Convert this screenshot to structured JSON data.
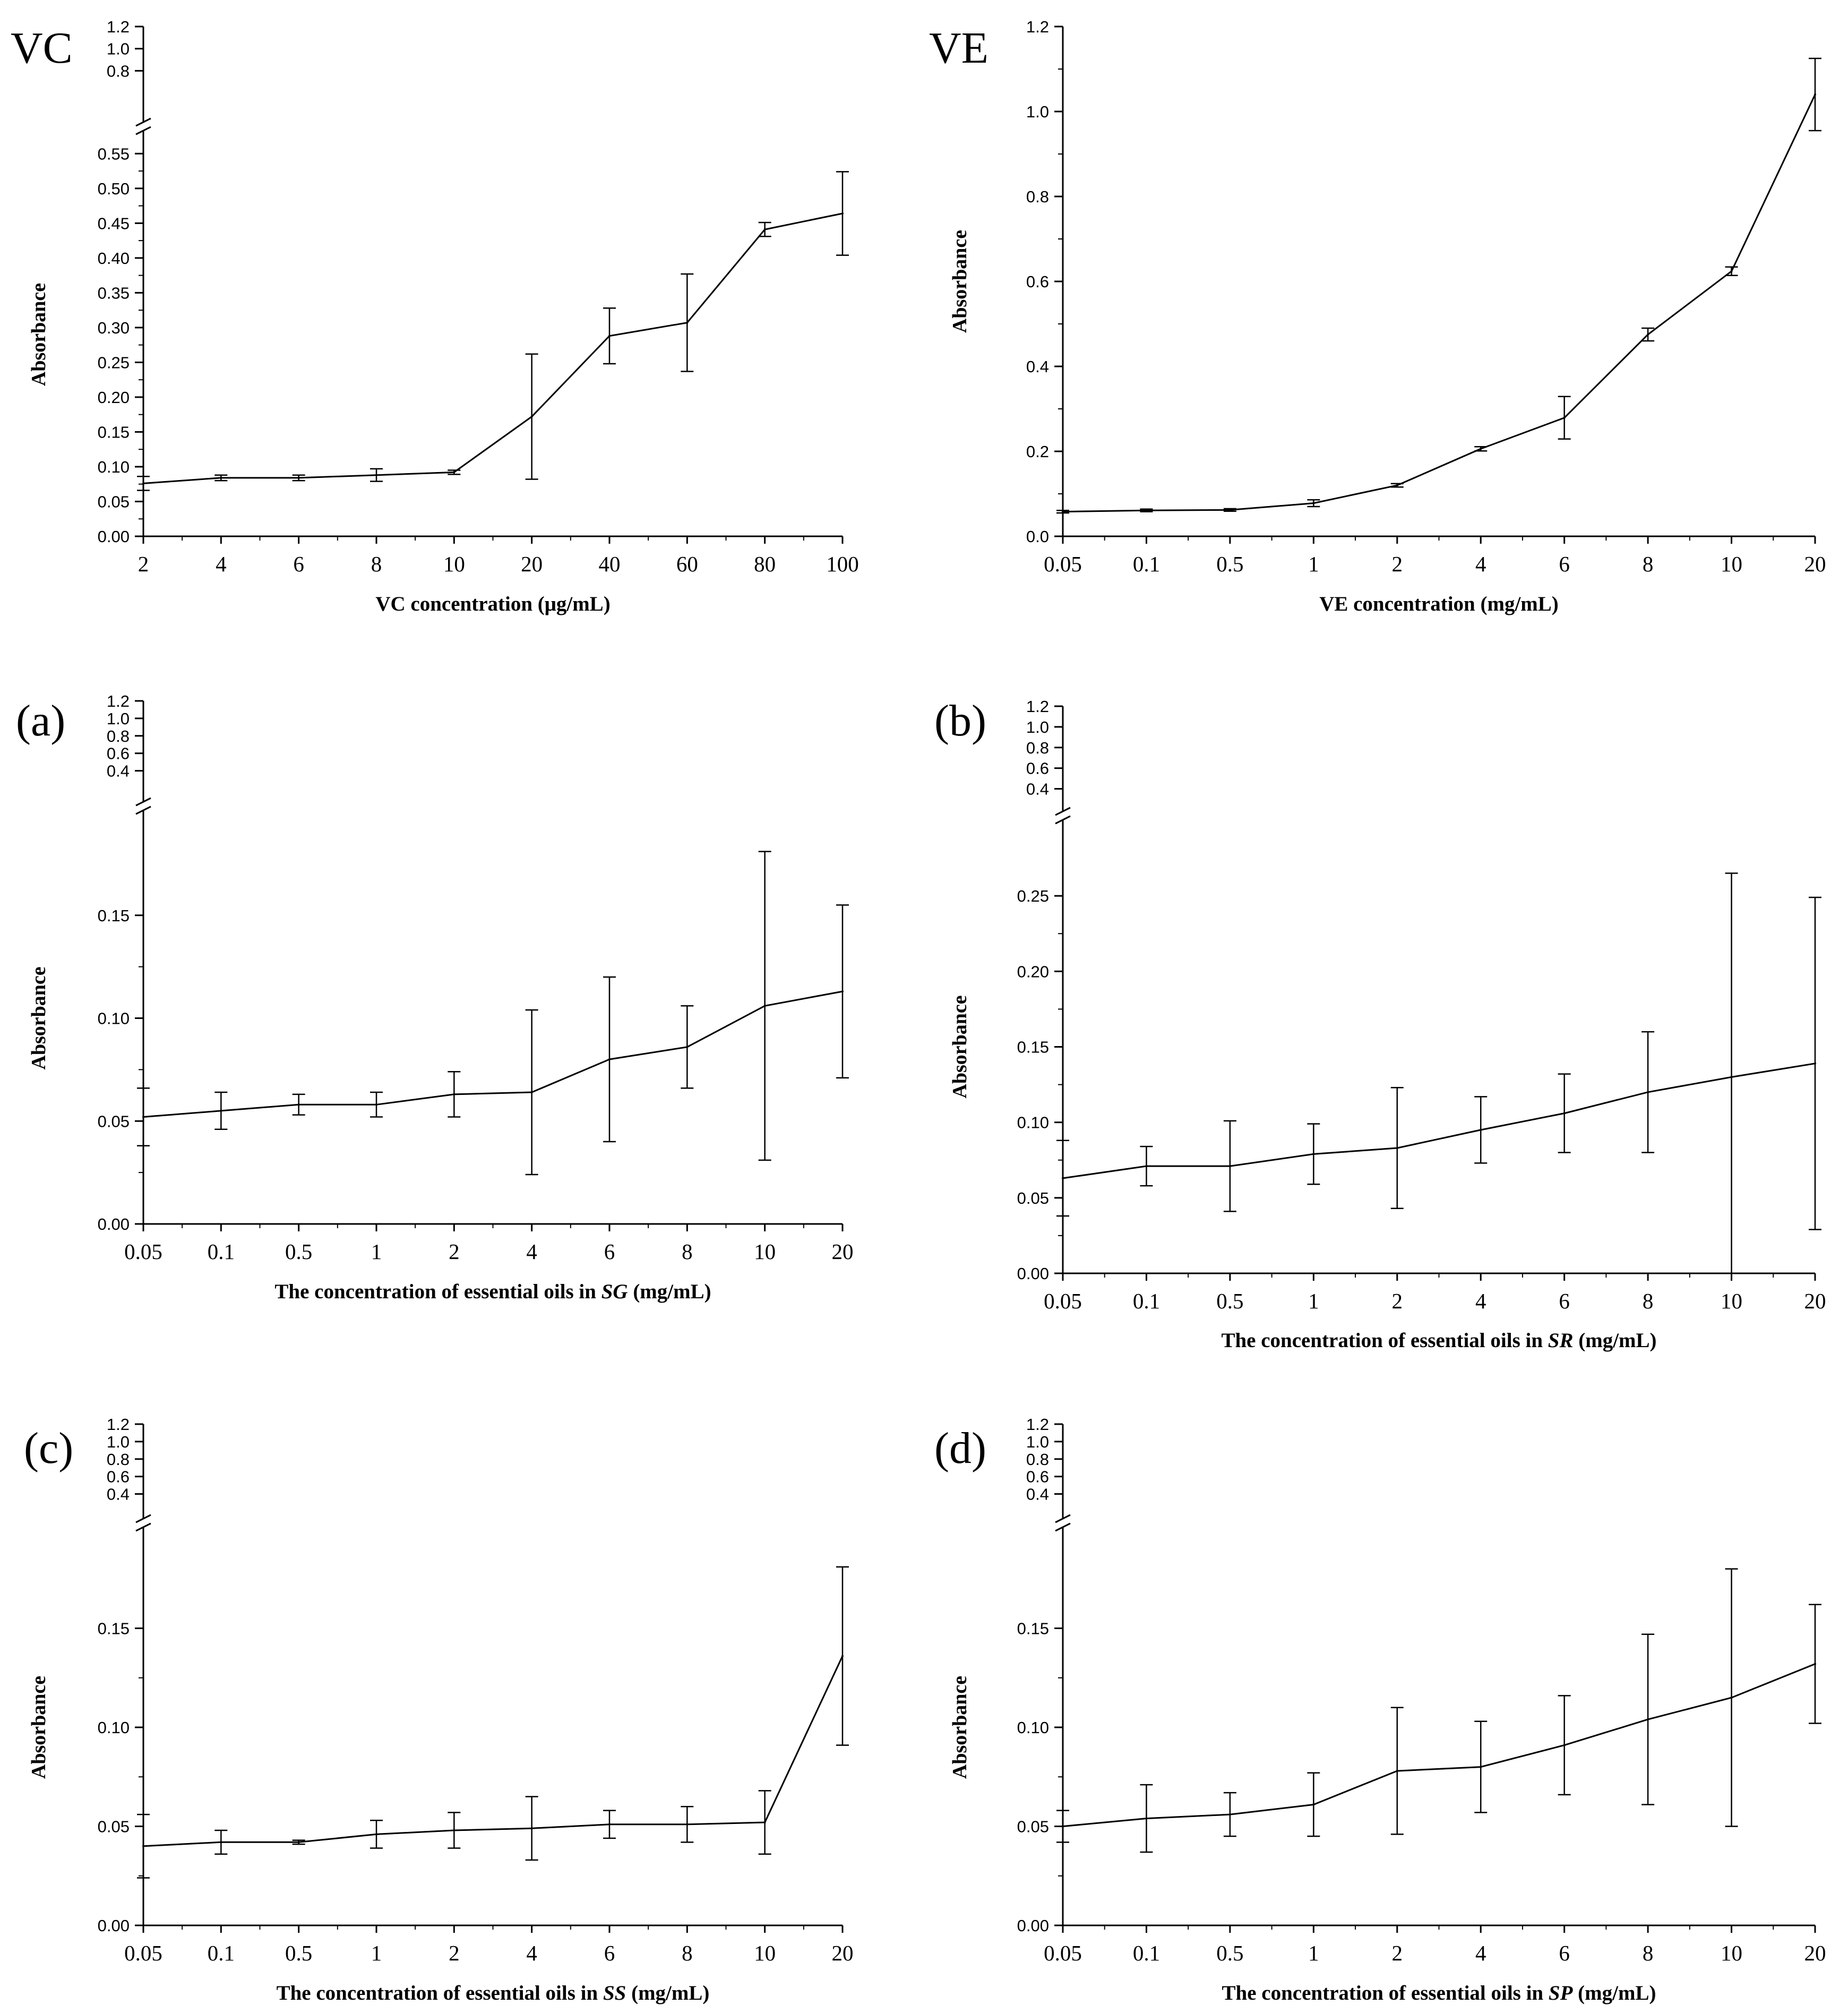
{
  "chart_data": [
    {
      "type": "line",
      "panel_label": "VC",
      "xlabel_parts": [
        {
          "t": "VC concentration (μg/mL)",
          "i": false
        }
      ],
      "ylabel": "Absorbance",
      "categories": [
        "2",
        "4",
        "6",
        "8",
        "10",
        "20",
        "40",
        "60",
        "80",
        "100"
      ],
      "values": [
        0.076,
        0.084,
        0.084,
        0.088,
        0.092,
        0.172,
        0.288,
        0.307,
        0.441,
        0.464
      ],
      "errors": [
        0.01,
        0.004,
        0.004,
        0.009,
        0.003,
        0.09,
        0.04,
        0.07,
        0.01,
        0.06
      ],
      "ylim": [
        0,
        0.58
      ],
      "yticks": [
        "0.00",
        "0.05",
        "0.10",
        "0.15",
        "0.20",
        "0.25",
        "0.30",
        "0.35",
        "0.40",
        "0.45",
        "0.50",
        "0.55"
      ],
      "upper_ylim": [
        0.6,
        1.2
      ],
      "upper_yticks": [
        "0.8",
        "1.0",
        "1.2"
      ]
    },
    {
      "type": "line",
      "panel_label": "VE",
      "xlabel_parts": [
        {
          "t": "VE concentration (mg/mL)",
          "i": false
        }
      ],
      "ylabel": "Absorbance",
      "categories": [
        "0.05",
        "0.1",
        "0.5",
        "1",
        "2",
        "4",
        "6",
        "8",
        "10",
        "20"
      ],
      "values": [
        0.058,
        0.061,
        0.062,
        0.078,
        0.12,
        0.206,
        0.279,
        0.475,
        0.624,
        1.04
      ],
      "errors": [
        0.003,
        0.003,
        0.003,
        0.008,
        0.004,
        0.005,
        0.05,
        0.015,
        0.01,
        0.085
      ],
      "ylim": [
        0,
        1.2
      ],
      "yticks": [
        "0.0",
        "0.2",
        "0.4",
        "0.6",
        "0.8",
        "1.0",
        "1.2"
      ]
    },
    {
      "type": "line",
      "panel_label": "(a)",
      "xlabel_parts": [
        {
          "t": "The concentration of essential oils in ",
          "i": false
        },
        {
          "t": "SG",
          "i": true
        },
        {
          "t": " (mg/mL)",
          "i": false
        }
      ],
      "ylabel": "Absorbance",
      "categories": [
        "0.05",
        "0.1",
        "0.5",
        "1",
        "2",
        "4",
        "6",
        "8",
        "10",
        "20"
      ],
      "values": [
        0.052,
        0.055,
        0.058,
        0.058,
        0.063,
        0.064,
        0.08,
        0.086,
        0.106,
        0.113
      ],
      "errors": [
        0.014,
        0.009,
        0.005,
        0.006,
        0.011,
        0.04,
        0.04,
        0.02,
        0.075,
        0.042
      ],
      "ylim": [
        0,
        0.2
      ],
      "yticks": [
        "0.00",
        "0.05",
        "0.10",
        "0.15"
      ],
      "upper_ylim": [
        0.3,
        1.2
      ],
      "upper_yticks": [
        "0.4",
        "0.6",
        "0.8",
        "1.0",
        "1.2"
      ]
    },
    {
      "type": "line",
      "panel_label": "(b)",
      "xlabel_parts": [
        {
          "t": "The concentration of essential oils in ",
          "i": false
        },
        {
          "t": "SR",
          "i": true
        },
        {
          "t": " (mg/mL)",
          "i": false
        }
      ],
      "ylabel": "Absorbance",
      "categories": [
        "0.05",
        "0.1",
        "0.5",
        "1",
        "2",
        "4",
        "6",
        "8",
        "10",
        "20"
      ],
      "values": [
        0.063,
        0.071,
        0.071,
        0.079,
        0.083,
        0.095,
        0.106,
        0.12,
        0.13,
        0.139
      ],
      "errors": [
        0.025,
        0.013,
        0.03,
        0.02,
        0.04,
        0.022,
        0.026,
        0.04,
        0.135,
        0.11
      ],
      "ylim": [
        0,
        0.3
      ],
      "yticks": [
        "0.00",
        "0.05",
        "0.10",
        "0.15",
        "0.20",
        "0.25"
      ],
      "upper_ylim": [
        0.3,
        1.2
      ],
      "upper_yticks": [
        "0.4",
        "0.6",
        "0.8",
        "1.0",
        "1.2"
      ]
    },
    {
      "type": "line",
      "panel_label": "(c)",
      "xlabel_parts": [
        {
          "t": "The concentration of essential oils in ",
          "i": false
        },
        {
          "t": "SS",
          "i": true
        },
        {
          "t": " (mg/mL)",
          "i": false
        }
      ],
      "ylabel": "Absorbance",
      "categories": [
        "0.05",
        "0.1",
        "0.5",
        "1",
        "2",
        "4",
        "6",
        "8",
        "10",
        "20"
      ],
      "values": [
        0.04,
        0.042,
        0.042,
        0.046,
        0.048,
        0.049,
        0.051,
        0.051,
        0.052,
        0.136
      ],
      "errors": [
        0.016,
        0.006,
        0.001,
        0.007,
        0.009,
        0.016,
        0.007,
        0.009,
        0.016,
        0.045
      ],
      "ylim": [
        0,
        0.2
      ],
      "yticks": [
        "0.00",
        "0.05",
        "0.10",
        "0.15"
      ],
      "upper_ylim": [
        0.3,
        1.2
      ],
      "upper_yticks": [
        "0.4",
        "0.6",
        "0.8",
        "1.0",
        "1.2"
      ]
    },
    {
      "type": "line",
      "panel_label": "(d)",
      "xlabel_parts": [
        {
          "t": "The concentration of essential oils in ",
          "i": false
        },
        {
          "t": "SP",
          "i": true
        },
        {
          "t": " (mg/mL)",
          "i": false
        }
      ],
      "ylabel": "Absorbance",
      "categories": [
        "0.05",
        "0.1",
        "0.5",
        "1",
        "2",
        "4",
        "6",
        "8",
        "10",
        "20"
      ],
      "values": [
        0.05,
        0.054,
        0.056,
        0.061,
        0.078,
        0.08,
        0.091,
        0.104,
        0.115,
        0.132
      ],
      "errors": [
        0.008,
        0.017,
        0.011,
        0.016,
        0.032,
        0.023,
        0.025,
        0.043,
        0.065,
        0.03
      ],
      "ylim": [
        0,
        0.2
      ],
      "yticks": [
        "0.00",
        "0.05",
        "0.10",
        "0.15"
      ],
      "upper_ylim": [
        0.3,
        1.2
      ],
      "upper_yticks": [
        "0.4",
        "0.6",
        "0.8",
        "1.0",
        "1.2"
      ]
    }
  ]
}
